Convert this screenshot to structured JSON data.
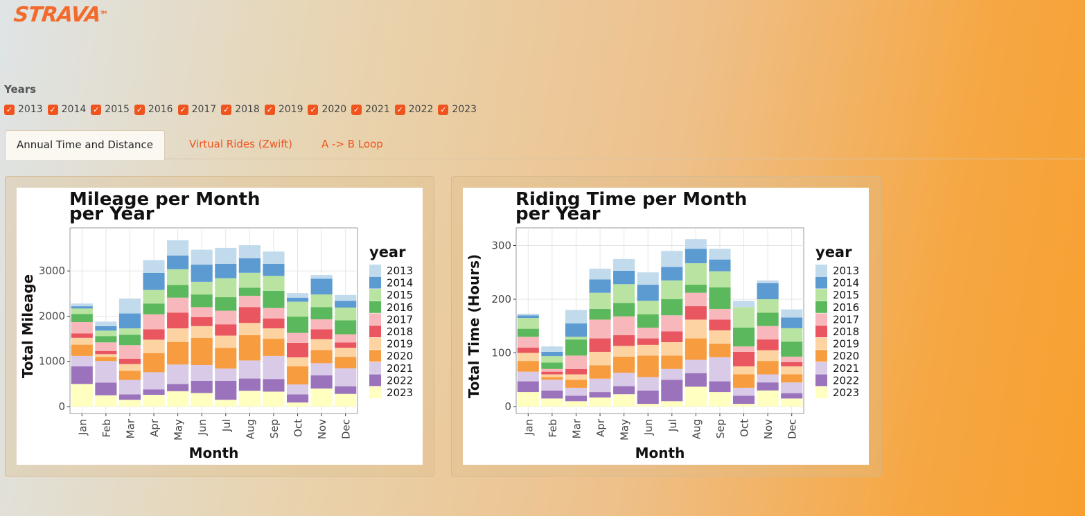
{
  "brand": {
    "name": "STRAVA"
  },
  "filters": {
    "label": "Years",
    "years": [
      "2013",
      "2014",
      "2015",
      "2016",
      "2017",
      "2018",
      "2019",
      "2020",
      "2021",
      "2022",
      "2023"
    ]
  },
  "tabs": [
    {
      "label": "Annual Time and Distance"
    },
    {
      "label": "Virtual Rides (Zwift)"
    },
    {
      "label": "A -> B Loop"
    }
  ],
  "colors": {
    "accent": "#f0541e",
    "year_palette": [
      "#c2dbec",
      "#5b9bd1",
      "#b9e3a0",
      "#5cb85c",
      "#f8b8bb",
      "#e9565f",
      "#fdd3a1",
      "#f79c3f",
      "#d9cae8",
      "#9b73bc",
      "#ffffbf"
    ]
  },
  "chart_data": [
    {
      "type": "bar",
      "stacked": true,
      "title": "Mileage per Month per Year",
      "title_lines": [
        "Mileage per Month",
        "per Year"
      ],
      "xlabel": "Month",
      "ylabel": "Total Mileage",
      "ylim": [
        0,
        3800
      ],
      "yticks": [
        0,
        1000,
        2000,
        3000
      ],
      "legend_title": "year",
      "legend_position": "right",
      "grid": true,
      "categories": [
        "Jan",
        "Feb",
        "Mar",
        "Apr",
        "May",
        "Jun",
        "Jul",
        "Aug",
        "Sep",
        "Oct",
        "Nov",
        "Dec"
      ],
      "series": [
        {
          "name": "2013",
          "values": [
            60,
            100,
            330,
            280,
            340,
            330,
            350,
            290,
            270,
            100,
            80,
            130
          ]
        },
        {
          "name": "2014",
          "values": [
            50,
            100,
            330,
            380,
            300,
            380,
            320,
            320,
            270,
            90,
            350,
            150
          ]
        },
        {
          "name": "2015",
          "values": [
            120,
            120,
            140,
            300,
            350,
            280,
            420,
            330,
            330,
            330,
            280,
            280
          ]
        },
        {
          "name": "2016",
          "values": [
            180,
            140,
            230,
            240,
            280,
            280,
            300,
            180,
            380,
            360,
            270,
            310
          ]
        },
        {
          "name": "2017",
          "values": [
            250,
            190,
            300,
            330,
            330,
            220,
            300,
            250,
            230,
            220,
            220,
            180
          ]
        },
        {
          "name": "2018",
          "values": [
            100,
            70,
            120,
            230,
            350,
            200,
            250,
            350,
            220,
            320,
            220,
            120
          ]
        },
        {
          "name": "2019",
          "values": [
            150,
            60,
            150,
            300,
            300,
            260,
            270,
            270,
            230,
            200,
            240,
            200
          ]
        },
        {
          "name": "2020",
          "values": [
            250,
            90,
            200,
            420,
            500,
            600,
            460,
            560,
            380,
            400,
            290,
            250
          ]
        },
        {
          "name": "2021",
          "values": [
            230,
            480,
            320,
            380,
            430,
            350,
            270,
            400,
            510,
            220,
            270,
            400
          ]
        },
        {
          "name": "2022",
          "values": [
            390,
            280,
            120,
            120,
            160,
            270,
            420,
            270,
            280,
            180,
            290,
            170
          ]
        },
        {
          "name": "2023",
          "values": [
            500,
            250,
            150,
            260,
            340,
            300,
            150,
            350,
            330,
            90,
            400,
            280
          ]
        }
      ]
    },
    {
      "type": "bar",
      "stacked": true,
      "title": "Riding Time per Month per Year",
      "title_lines": [
        "Riding Time per Month",
        "per Year"
      ],
      "xlabel": "Month",
      "ylabel": "Total Time (Hours)",
      "ylim": [
        0,
        320
      ],
      "yticks": [
        0,
        100,
        200,
        300
      ],
      "legend_title": "year",
      "legend_position": "right",
      "grid": true,
      "categories": [
        "Jan",
        "Feb",
        "Mar",
        "Apr",
        "May",
        "Jun",
        "Jul",
        "Aug",
        "Sep",
        "Oct",
        "Nov",
        "Dec"
      ],
      "series": [
        {
          "name": "2013",
          "values": [
            3,
            10,
            25,
            20,
            22,
            23,
            30,
            18,
            20,
            12,
            5,
            15
          ]
        },
        {
          "name": "2014",
          "values": [
            5,
            8,
            25,
            25,
            25,
            30,
            25,
            27,
            22,
            0,
            30,
            20
          ]
        },
        {
          "name": "2015",
          "values": [
            20,
            12,
            5,
            30,
            35,
            25,
            35,
            40,
            30,
            38,
            25,
            25
          ]
        },
        {
          "name": "2016",
          "values": [
            15,
            12,
            30,
            20,
            25,
            25,
            30,
            15,
            40,
            35,
            25,
            28
          ]
        },
        {
          "name": "2017",
          "values": [
            20,
            5,
            25,
            35,
            35,
            20,
            30,
            25,
            20,
            10,
            25,
            10
          ]
        },
        {
          "name": "2018",
          "values": [
            10,
            5,
            10,
            25,
            20,
            12,
            20,
            25,
            20,
            27,
            20,
            8
          ]
        },
        {
          "name": "2019",
          "values": [
            15,
            5,
            10,
            25,
            20,
            20,
            25,
            35,
            25,
            15,
            20,
            15
          ]
        },
        {
          "name": "2020",
          "values": [
            20,
            5,
            15,
            25,
            30,
            40,
            25,
            40,
            25,
            25,
            25,
            15
          ]
        },
        {
          "name": "2021",
          "values": [
            18,
            20,
            15,
            25,
            25,
            25,
            20,
            25,
            45,
            15,
            15,
            20
          ]
        },
        {
          "name": "2022",
          "values": [
            20,
            15,
            10,
            10,
            15,
            25,
            40,
            25,
            20,
            15,
            15,
            10
          ]
        },
        {
          "name": "2023",
          "values": [
            27,
            15,
            10,
            17,
            23,
            5,
            10,
            37,
            27,
            5,
            30,
            15
          ]
        }
      ]
    }
  ]
}
